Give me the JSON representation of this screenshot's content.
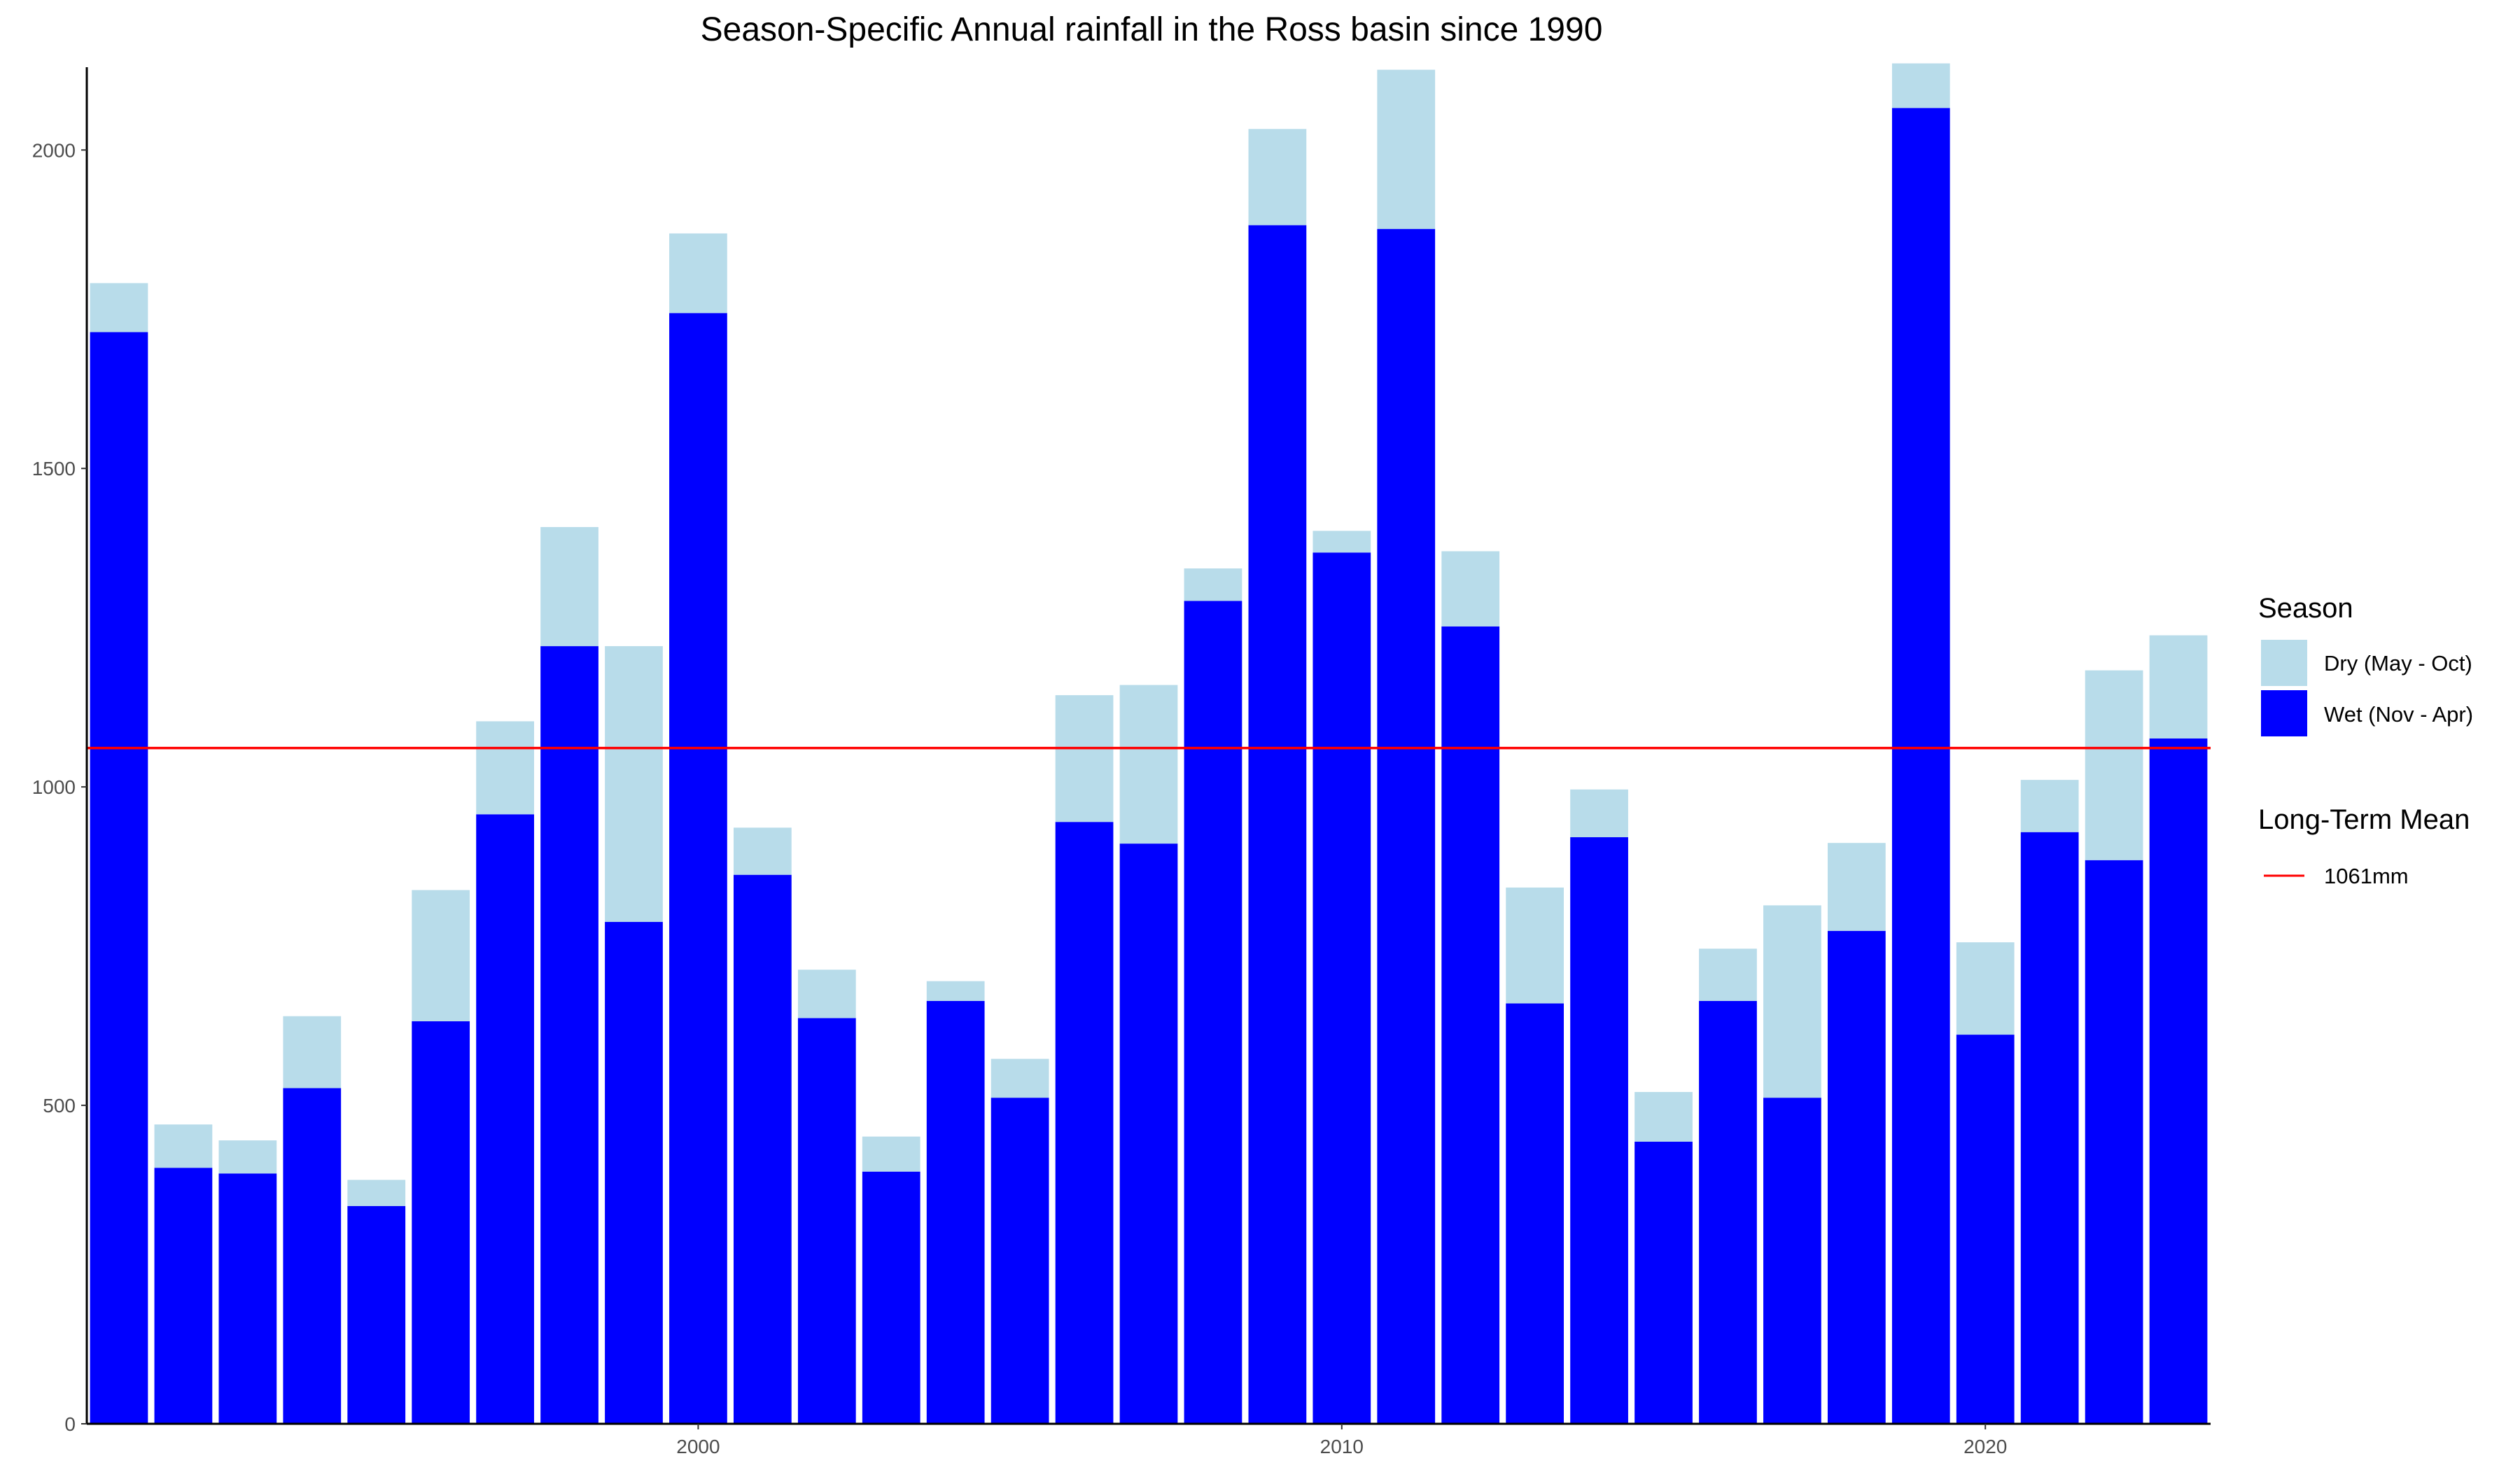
{
  "chart_data": {
    "type": "bar",
    "stacked": true,
    "title": "Season-Specific Annual rainfall in the Ross basin since 1990",
    "xlabel": "",
    "ylabel": "",
    "x": [
      1991,
      1992,
      1993,
      1994,
      1995,
      1996,
      1997,
      1998,
      1999,
      2000,
      2001,
      2002,
      2003,
      2004,
      2005,
      2006,
      2007,
      2008,
      2009,
      2010,
      2011,
      2012,
      2013,
      2014,
      2015,
      2016,
      2017,
      2018,
      2019,
      2020,
      2021,
      2022,
      2023
    ],
    "xlim": [
      1990.5,
      2023.5
    ],
    "ylim": [
      0,
      2130
    ],
    "x_ticks": [
      2000,
      2010,
      2020
    ],
    "x_tick_labels": [
      "2000",
      "2010",
      "2020"
    ],
    "y_ticks": [
      0,
      500,
      1000,
      1500,
      2000
    ],
    "y_tick_labels": [
      "0",
      "500",
      "1000",
      "1500",
      "2000"
    ],
    "grid": false,
    "series": [
      {
        "name": "Wet (Nov - Apr)",
        "color": "#0000ff",
        "values": [
          1714,
          402,
          393,
          527,
          342,
          632,
          957,
          1221,
          788,
          1744,
          862,
          637,
          396,
          664,
          512,
          945,
          911,
          1292,
          1882,
          1368,
          1876,
          1252,
          660,
          921,
          443,
          664,
          512,
          774,
          2066,
          611,
          929,
          885,
          1076
        ]
      },
      {
        "name": "Dry (May - Oct)",
        "color": "#b8dcea",
        "values": [
          77,
          68,
          52,
          113,
          41,
          206,
          146,
          187,
          433,
          125,
          74,
          76,
          55,
          31,
          61,
          199,
          249,
          51,
          151,
          34,
          250,
          118,
          182,
          75,
          78,
          82,
          302,
          138,
          70,
          145,
          82,
          298,
          162
        ]
      }
    ],
    "legend": {
      "position": "right",
      "season_title": "Season",
      "season_items": [
        "Dry (May - Oct)",
        "Wet (Nov - Apr)"
      ],
      "mean_title": "Long-Term Mean",
      "mean_label": "1061mm"
    },
    "reference_line": {
      "value": 1061,
      "label": "1061mm",
      "color": "#ff0000"
    }
  }
}
